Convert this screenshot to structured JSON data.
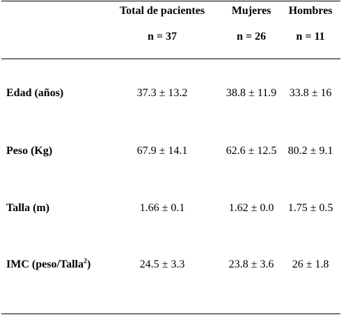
{
  "table": {
    "columns": [
      {
        "title": "Total de pacientes",
        "n": "n = 37"
      },
      {
        "title": "Mujeres",
        "n": "n = 26"
      },
      {
        "title": "Hombres",
        "n": "n = 11"
      }
    ],
    "rows": [
      {
        "label": "Edad (años)",
        "values": [
          "37.3 ± 13.2",
          "38.8 ± 11.9",
          "33.8 ± 16"
        ]
      },
      {
        "label": "Peso (Kg)",
        "values": [
          "67.9 ± 14.1",
          "62.6 ± 12.5",
          "80.2 ± 9.1"
        ]
      },
      {
        "label": "Talla (m)",
        "values": [
          "1.66 ± 0.1",
          "1.62 ± 0.0",
          "1.75 ± 0.5"
        ]
      },
      {
        "label_main": "IMC (peso/Talla",
        "label_sup": "2",
        "label_end": ")",
        "values": [
          "24.5 ± 3.3",
          "23.8 ± 3.6",
          "26 ± 1.8"
        ]
      }
    ]
  }
}
